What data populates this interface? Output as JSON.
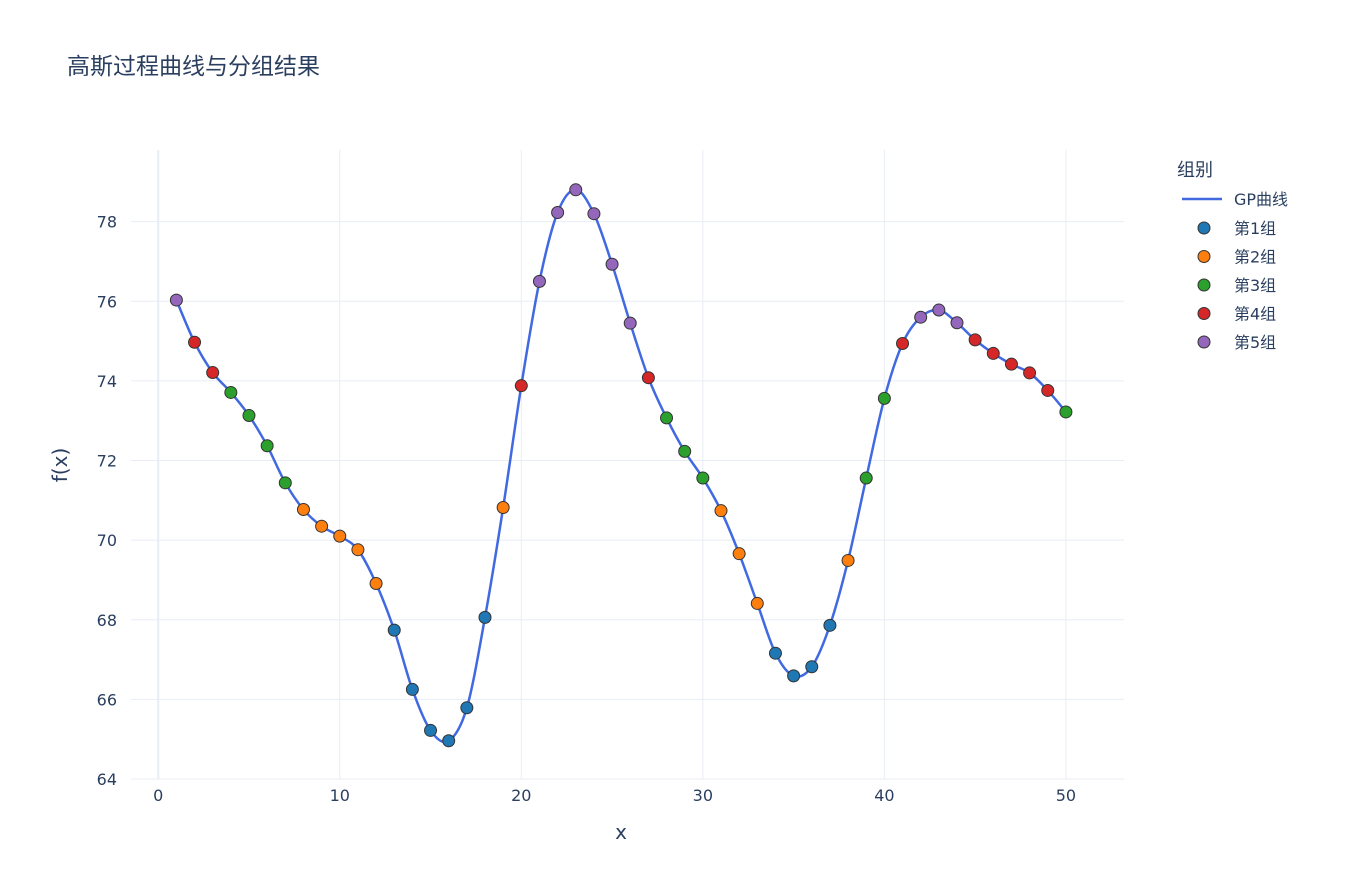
{
  "chart_data": {
    "type": "scatter",
    "title": "高斯过程曲线与分组结果",
    "xlabel": "x",
    "ylabel": "f(x)",
    "xlim": [
      -1.5,
      53.2
    ],
    "ylim": [
      64,
      79.8
    ],
    "x_ticks": [
      0,
      10,
      20,
      30,
      40,
      50
    ],
    "y_ticks": [
      64,
      66,
      68,
      70,
      72,
      74,
      76,
      78
    ],
    "grid": true,
    "legend": {
      "title": "组别",
      "position": "right"
    },
    "curve": {
      "name": "GP曲线",
      "color": "#4169e1",
      "x": [
        1,
        2,
        3,
        4,
        5,
        6,
        7,
        8,
        9,
        10,
        11,
        12,
        13,
        14,
        15,
        16,
        17,
        18,
        19,
        20,
        21,
        22,
        23,
        24,
        25,
        26,
        27,
        28,
        29,
        30,
        31,
        32,
        33,
        34,
        35,
        36,
        37,
        38,
        39,
        40,
        41,
        42,
        43,
        44,
        45,
        46,
        47,
        48,
        49,
        50
      ],
      "y": [
        76.03,
        74.97,
        74.21,
        73.71,
        73.13,
        72.37,
        71.44,
        70.77,
        70.35,
        70.1,
        69.76,
        68.91,
        67.74,
        66.25,
        65.22,
        64.96,
        65.79,
        68.06,
        70.82,
        73.88,
        76.5,
        78.23,
        78.8,
        78.2,
        76.93,
        75.45,
        74.08,
        73.07,
        72.23,
        71.56,
        70.74,
        69.66,
        68.41,
        67.16,
        66.59,
        66.82,
        67.86,
        69.49,
        71.56,
        73.56,
        74.94,
        75.6,
        75.78,
        75.46,
        75.03,
        74.69,
        74.42,
        74.2,
        73.76,
        73.22
      ]
    },
    "series": [
      {
        "name": "第1组",
        "color": "#1f77b4",
        "x": [
          13,
          14,
          15,
          16,
          17,
          18,
          34,
          35,
          36,
          37
        ],
        "y": [
          67.74,
          66.25,
          65.22,
          64.96,
          65.79,
          68.06,
          67.16,
          66.59,
          66.82,
          67.86
        ]
      },
      {
        "name": "第2组",
        "color": "#ff7f0e",
        "x": [
          8,
          9,
          10,
          11,
          12,
          19,
          31,
          32,
          33,
          38
        ],
        "y": [
          70.77,
          70.35,
          70.1,
          69.76,
          68.91,
          70.82,
          70.74,
          69.66,
          68.41,
          69.49
        ]
      },
      {
        "name": "第3组",
        "color": "#2ca02c",
        "x": [
          4,
          5,
          6,
          7,
          28,
          29,
          30,
          39,
          40,
          50
        ],
        "y": [
          73.71,
          73.13,
          72.37,
          71.44,
          73.07,
          72.23,
          71.56,
          71.56,
          73.56,
          73.22
        ]
      },
      {
        "name": "第4组",
        "color": "#d62728",
        "x": [
          2,
          3,
          20,
          27,
          41,
          45,
          46,
          47,
          48,
          49
        ],
        "y": [
          74.97,
          74.21,
          73.88,
          74.08,
          74.94,
          75.03,
          74.69,
          74.42,
          74.2,
          73.76
        ]
      },
      {
        "name": "第5组",
        "color": "#9467bd",
        "x": [
          1,
          21,
          22,
          23,
          24,
          25,
          26,
          42,
          43,
          44
        ],
        "y": [
          76.03,
          76.5,
          78.23,
          78.8,
          78.2,
          76.93,
          75.45,
          75.6,
          75.78,
          75.46
        ]
      }
    ]
  }
}
